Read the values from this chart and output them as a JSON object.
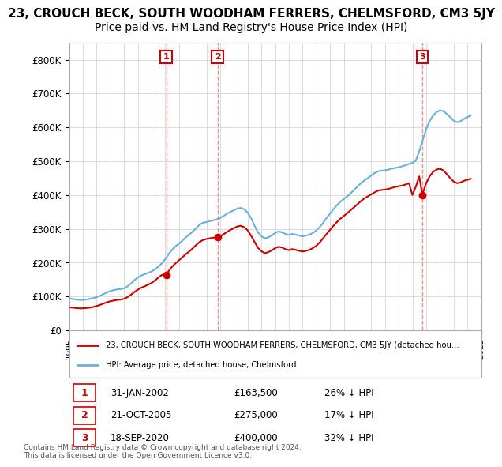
{
  "title": "23, CROUCH BECK, SOUTH WOODHAM FERRERS, CHELMSFORD, CM3 5JY",
  "subtitle": "Price paid vs. HM Land Registry's House Price Index (HPI)",
  "title_fontsize": 11,
  "subtitle_fontsize": 10,
  "ylim": [
    0,
    850000
  ],
  "yticks": [
    0,
    100000,
    200000,
    300000,
    400000,
    500000,
    600000,
    700000,
    800000
  ],
  "ytick_labels": [
    "£0",
    "£100K",
    "£200K",
    "£300K",
    "£400K",
    "£500K",
    "£600K",
    "£700K",
    "£800K"
  ],
  "hpi_color": "#6ab0de",
  "price_color": "#cc0000",
  "annotation_box_color": "#cc0000",
  "dashed_line_color": "#ff8888",
  "background_color": "#ffffff",
  "grid_color": "#dddddd",
  "sale_points": [
    {
      "date_num": 2002.08,
      "price": 163500,
      "label": "1"
    },
    {
      "date_num": 2005.81,
      "price": 275000,
      "label": "2"
    },
    {
      "date_num": 2020.72,
      "price": 400000,
      "label": "3"
    }
  ],
  "legend_entry1": "23, CROUCH BECK, SOUTH WOODHAM FERRERS, CHELMSFORD, CM3 5JY (detached hou...",
  "legend_entry2": "HPI: Average price, detached house, Chelmsford",
  "footer_rows": [
    {
      "num": "1",
      "date": "31-JAN-2002",
      "price": "£163,500",
      "pct": "26% ↓ HPI"
    },
    {
      "num": "2",
      "date": "21-OCT-2005",
      "price": "£275,000",
      "pct": "17% ↓ HPI"
    },
    {
      "num": "3",
      "date": "18-SEP-2020",
      "price": "£400,000",
      "pct": "32% ↓ HPI"
    }
  ],
  "copyright_text": "Contains HM Land Registry data © Crown copyright and database right 2024.\nThis data is licensed under the Open Government Licence v3.0.",
  "hpi_data_years": [
    1995.0,
    1995.25,
    1995.5,
    1995.75,
    1996.0,
    1996.25,
    1996.5,
    1996.75,
    1997.0,
    1997.25,
    1997.5,
    1997.75,
    1998.0,
    1998.25,
    1998.5,
    1998.75,
    1999.0,
    1999.25,
    1999.5,
    1999.75,
    2000.0,
    2000.25,
    2000.5,
    2000.75,
    2001.0,
    2001.25,
    2001.5,
    2001.75,
    2002.0,
    2002.25,
    2002.5,
    2002.75,
    2003.0,
    2003.25,
    2003.5,
    2003.75,
    2004.0,
    2004.25,
    2004.5,
    2004.75,
    2005.0,
    2005.25,
    2005.5,
    2005.75,
    2006.0,
    2006.25,
    2006.5,
    2006.75,
    2007.0,
    2007.25,
    2007.5,
    2007.75,
    2008.0,
    2008.25,
    2008.5,
    2008.75,
    2009.0,
    2009.25,
    2009.5,
    2009.75,
    2010.0,
    2010.25,
    2010.5,
    2010.75,
    2011.0,
    2011.25,
    2011.5,
    2011.75,
    2012.0,
    2012.25,
    2012.5,
    2012.75,
    2013.0,
    2013.25,
    2013.5,
    2013.75,
    2014.0,
    2014.25,
    2014.5,
    2014.75,
    2015.0,
    2015.25,
    2015.5,
    2015.75,
    2016.0,
    2016.25,
    2016.5,
    2016.75,
    2017.0,
    2017.25,
    2017.5,
    2017.75,
    2018.0,
    2018.25,
    2018.5,
    2018.75,
    2019.0,
    2019.25,
    2019.5,
    2019.75,
    2020.0,
    2020.25,
    2020.5,
    2020.75,
    2021.0,
    2021.25,
    2021.5,
    2021.75,
    2022.0,
    2022.25,
    2022.5,
    2022.75,
    2023.0,
    2023.25,
    2023.5,
    2023.75,
    2024.0,
    2024.25
  ],
  "hpi_data_values": [
    95000,
    93000,
    91000,
    90000,
    90000,
    91000,
    93000,
    95000,
    98000,
    102000,
    107000,
    112000,
    116000,
    119000,
    121000,
    122000,
    124000,
    130000,
    138000,
    148000,
    156000,
    162000,
    166000,
    170000,
    174000,
    180000,
    188000,
    198000,
    210000,
    225000,
    238000,
    248000,
    256000,
    265000,
    275000,
    283000,
    292000,
    302000,
    312000,
    318000,
    320000,
    323000,
    325000,
    328000,
    332000,
    338000,
    345000,
    350000,
    355000,
    360000,
    362000,
    358000,
    348000,
    332000,
    310000,
    290000,
    278000,
    272000,
    275000,
    280000,
    288000,
    292000,
    290000,
    285000,
    282000,
    285000,
    283000,
    280000,
    278000,
    280000,
    283000,
    288000,
    295000,
    305000,
    318000,
    332000,
    345000,
    358000,
    370000,
    380000,
    388000,
    396000,
    405000,
    415000,
    425000,
    435000,
    443000,
    450000,
    458000,
    465000,
    470000,
    472000,
    473000,
    475000,
    478000,
    480000,
    482000,
    485000,
    488000,
    492000,
    495000,
    502000,
    530000,
    562000,
    595000,
    618000,
    635000,
    645000,
    650000,
    648000,
    640000,
    630000,
    620000,
    615000,
    618000,
    625000,
    630000,
    635000
  ],
  "pp_data_years": [
    1995.0,
    1995.25,
    1995.5,
    1995.75,
    1996.0,
    1996.25,
    1996.5,
    1996.75,
    1997.0,
    1997.25,
    1997.5,
    1997.75,
    1998.0,
    1998.25,
    1998.5,
    1998.75,
    1999.0,
    1999.25,
    1999.5,
    1999.75,
    2000.0,
    2000.25,
    2000.5,
    2000.75,
    2001.0,
    2001.25,
    2001.5,
    2001.75,
    2002.08,
    2002.25,
    2002.5,
    2002.75,
    2003.0,
    2003.25,
    2003.5,
    2003.75,
    2004.0,
    2004.25,
    2004.5,
    2004.75,
    2005.0,
    2005.25,
    2005.5,
    2005.81,
    2006.0,
    2006.25,
    2006.5,
    2006.75,
    2007.0,
    2007.25,
    2007.5,
    2007.75,
    2008.0,
    2008.25,
    2008.5,
    2008.75,
    2009.0,
    2009.25,
    2009.5,
    2009.75,
    2010.0,
    2010.25,
    2010.5,
    2010.75,
    2011.0,
    2011.25,
    2011.5,
    2011.75,
    2012.0,
    2012.25,
    2012.5,
    2012.75,
    2013.0,
    2013.25,
    2013.5,
    2013.75,
    2014.0,
    2014.25,
    2014.5,
    2014.75,
    2015.0,
    2015.25,
    2015.5,
    2015.75,
    2016.0,
    2016.25,
    2016.5,
    2016.75,
    2017.0,
    2017.25,
    2017.5,
    2017.75,
    2018.0,
    2018.25,
    2018.5,
    2018.75,
    2019.0,
    2019.25,
    2019.5,
    2019.75,
    2020.0,
    2020.25,
    2020.5,
    2020.72,
    2021.0,
    2021.25,
    2021.5,
    2021.75,
    2022.0,
    2022.25,
    2022.5,
    2022.75,
    2023.0,
    2023.25,
    2023.5,
    2023.75,
    2024.0,
    2024.25
  ],
  "pp_data_values": [
    68000,
    67000,
    66000,
    65000,
    65000,
    66000,
    67000,
    69000,
    72000,
    75000,
    79000,
    83000,
    86000,
    88000,
    90000,
    91000,
    93000,
    98000,
    105000,
    113000,
    120000,
    126000,
    130000,
    135000,
    140000,
    147000,
    156000,
    163500,
    163500,
    175000,
    188000,
    198000,
    207000,
    216000,
    225000,
    233000,
    242000,
    252000,
    261000,
    267000,
    270000,
    272000,
    274000,
    275000,
    278000,
    284000,
    291000,
    297000,
    302000,
    307000,
    309000,
    305000,
    296000,
    280000,
    262000,
    244000,
    234000,
    228000,
    231000,
    236000,
    243000,
    247000,
    245000,
    240000,
    237000,
    240000,
    238000,
    235000,
    233000,
    235000,
    238000,
    243000,
    250000,
    260000,
    272000,
    285000,
    297000,
    309000,
    320000,
    330000,
    338000,
    346000,
    355000,
    364000,
    373000,
    382000,
    390000,
    396000,
    402000,
    408000,
    413000,
    415000,
    416000,
    418000,
    421000,
    424000,
    426000,
    428000,
    431000,
    435000,
    400000,
    425000,
    455000,
    400000,
    435000,
    455000,
    468000,
    475000,
    478000,
    473000,
    462000,
    450000,
    440000,
    435000,
    437000,
    442000,
    445000,
    448000
  ]
}
